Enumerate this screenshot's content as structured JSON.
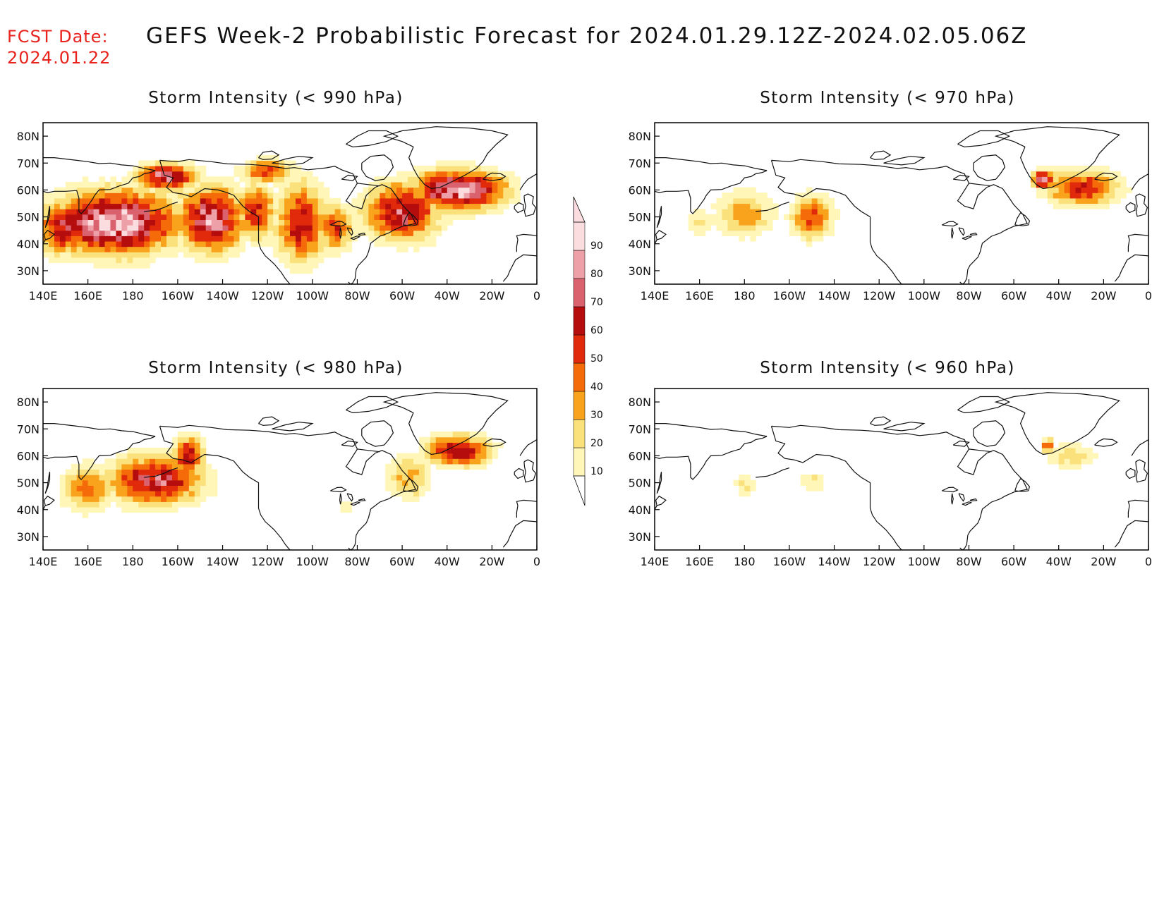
{
  "header": {
    "fcst_label": "FCST Date:",
    "fcst_value": "2024.01.22",
    "title": "GEFS Week-2 Probabilistic Forecast for 2024.01.29.12Z-2024.02.05.06Z"
  },
  "axes": {
    "lon_labels": [
      "140E",
      "160E",
      "180",
      "160W",
      "140W",
      "120W",
      "100W",
      "80W",
      "60W",
      "40W",
      "20W",
      "0"
    ],
    "lat_labels": [
      "80N",
      "70N",
      "60N",
      "50N",
      "40N",
      "30N"
    ]
  },
  "colorbar": {
    "levels": [
      "10",
      "20",
      "30",
      "40",
      "50",
      "60",
      "70",
      "80",
      "90"
    ],
    "colors": [
      "#fff6b8",
      "#fbe17c",
      "#f9a31c",
      "#f56b0a",
      "#e12a0c",
      "#b50d0d",
      "#d9626e",
      "#eea0a8",
      "#fbdde0"
    ]
  },
  "panels": [
    {
      "title": "Storm Intensity (< 990 hPa)",
      "blobs": [
        {
          "lon": 172,
          "lat": 48,
          "rlon": 34,
          "rlat": 14,
          "peak": 95
        },
        {
          "lon": 150,
          "lat": 46,
          "rlon": 14,
          "rlat": 12,
          "peak": 70
        },
        {
          "lon": 215,
          "lat": 49,
          "rlon": 18,
          "rlat": 14,
          "peak": 85
        },
        {
          "lon": 235,
          "lat": 52,
          "rlon": 10,
          "rlat": 12,
          "peak": 60
        },
        {
          "lon": 255,
          "lat": 48,
          "rlon": 14,
          "rlat": 18,
          "peak": 62
        },
        {
          "lon": 270,
          "lat": 46,
          "rlon": 10,
          "rlat": 10,
          "peak": 55
        },
        {
          "lon": 300,
          "lat": 52,
          "rlon": 20,
          "rlat": 13,
          "peak": 72
        },
        {
          "lon": 325,
          "lat": 60,
          "rlon": 25,
          "rlat": 9,
          "peak": 92
        },
        {
          "lon": 240,
          "lat": 67,
          "rlon": 14,
          "rlat": 5,
          "peak": 55
        },
        {
          "lon": 195,
          "lat": 65,
          "rlon": 16,
          "rlat": 6,
          "peak": 80
        }
      ]
    },
    {
      "title": "Storm Intensity (< 970 hPa)",
      "blobs": [
        {
          "lon": 180,
          "lat": 51,
          "rlon": 16,
          "rlat": 10,
          "peak": 38
        },
        {
          "lon": 210,
          "lat": 50,
          "rlon": 11,
          "rlat": 10,
          "peak": 52
        },
        {
          "lon": 160,
          "lat": 48,
          "rlon": 7,
          "rlat": 6,
          "peak": 22
        },
        {
          "lon": 330,
          "lat": 61,
          "rlon": 20,
          "rlat": 8,
          "peak": 60
        },
        {
          "lon": 313,
          "lat": 64,
          "rlon": 6,
          "rlat": 4,
          "peak": 82
        }
      ]
    },
    {
      "title": "Storm Intensity (< 980 hPa)",
      "blobs": [
        {
          "lon": 190,
          "lat": 51,
          "rlon": 26,
          "rlat": 11,
          "peak": 72
        },
        {
          "lon": 160,
          "lat": 48,
          "rlon": 14,
          "rlat": 11,
          "peak": 42
        },
        {
          "lon": 205,
          "lat": 60,
          "rlon": 8,
          "rlat": 9,
          "peak": 68
        },
        {
          "lon": 303,
          "lat": 52,
          "rlon": 13,
          "rlat": 11,
          "peak": 32
        },
        {
          "lon": 325,
          "lat": 62,
          "rlon": 17,
          "rlat": 7,
          "peak": 72
        },
        {
          "lon": 275,
          "lat": 41,
          "rlon": 4,
          "rlat": 3,
          "peak": 18
        }
      ]
    },
    {
      "title": "Storm Intensity (< 960 hPa)",
      "blobs": [
        {
          "lon": 180,
          "lat": 49,
          "rlon": 6,
          "rlat": 6,
          "peak": 22
        },
        {
          "lon": 210,
          "lat": 50,
          "rlon": 7,
          "rlat": 5,
          "peak": 24
        },
        {
          "lon": 325,
          "lat": 60,
          "rlon": 14,
          "rlat": 6,
          "peak": 28
        },
        {
          "lon": 315,
          "lat": 64,
          "rlon": 3,
          "rlat": 3,
          "peak": 55
        }
      ]
    }
  ]
}
